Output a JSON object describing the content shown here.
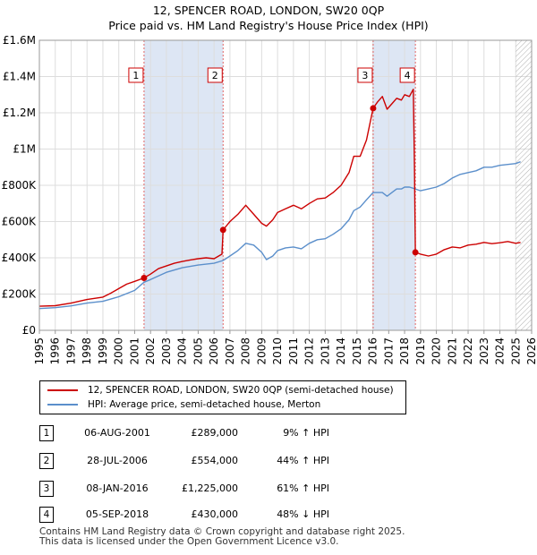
{
  "chart_data": {
    "type": "line",
    "title": "12, SPENCER ROAD, LONDON, SW20 0QP",
    "subtitle": "Price paid vs. HM Land Registry's House Price Index (HPI)",
    "xlabel": "",
    "ylabel": "",
    "xlim": [
      1995,
      2026
    ],
    "ylim": [
      0,
      1600000
    ],
    "y_ticks": [
      {
        "value": 0,
        "label": "£0"
      },
      {
        "value": 200000,
        "label": "£200K"
      },
      {
        "value": 400000,
        "label": "£400K"
      },
      {
        "value": 600000,
        "label": "£600K"
      },
      {
        "value": 800000,
        "label": "£800K"
      },
      {
        "value": 1000000,
        "label": "£1M"
      },
      {
        "value": 1200000,
        "label": "£1.2M"
      },
      {
        "value": 1400000,
        "label": "£1.4M"
      },
      {
        "value": 1600000,
        "label": "£1.6M"
      }
    ],
    "x_ticks": [
      "1995",
      "1996",
      "1997",
      "1998",
      "1999",
      "2000",
      "2001",
      "2002",
      "2003",
      "2004",
      "2005",
      "2006",
      "2007",
      "2008",
      "2009",
      "2010",
      "2011",
      "2012",
      "2013",
      "2014",
      "2015",
      "2016",
      "2017",
      "2018",
      "2019",
      "2020",
      "2021",
      "2022",
      "2023",
      "2024",
      "2025",
      "2026"
    ],
    "grid": true,
    "legend_position": "below",
    "series": [
      {
        "name": "12, SPENCER ROAD, LONDON, SW20 0QP (semi-detached house)",
        "color": "#cc0000",
        "x": [
          1995.0,
          1996.0,
          1997.0,
          1998.0,
          1999.0,
          1999.5,
          2000.0,
          2000.5,
          2001.0,
          2001.59,
          2002.0,
          2002.5,
          2003.0,
          2003.5,
          2004.0,
          2004.5,
          2005.0,
          2005.5,
          2006.0,
          2006.5,
          2006.57,
          2007.0,
          2007.5,
          2008.0,
          2008.5,
          2009.0,
          2009.3,
          2009.7,
          2010.0,
          2010.5,
          2011.0,
          2011.5,
          2012.0,
          2012.5,
          2013.0,
          2013.5,
          2014.0,
          2014.5,
          2014.8,
          2015.2,
          2015.6,
          2016.02,
          2016.3,
          2016.6,
          2016.9,
          2017.2,
          2017.5,
          2017.8,
          2018.0,
          2018.3,
          2018.55,
          2018.62,
          2018.68,
          2019.0,
          2019.5,
          2020.0,
          2020.5,
          2021.0,
          2021.5,
          2022.0,
          2022.5,
          2023.0,
          2023.5,
          2024.0,
          2024.5,
          2025.0,
          2025.3
        ],
        "values": [
          133000,
          136000,
          150000,
          170000,
          183000,
          205000,
          230000,
          255000,
          270000,
          289000,
          310000,
          340000,
          355000,
          370000,
          380000,
          388000,
          395000,
          400000,
          395000,
          420000,
          554000,
          600000,
          640000,
          690000,
          640000,
          590000,
          575000,
          610000,
          650000,
          670000,
          690000,
          670000,
          700000,
          725000,
          730000,
          760000,
          800000,
          870000,
          960000,
          960000,
          1050000,
          1225000,
          1260000,
          1290000,
          1220000,
          1250000,
          1280000,
          1270000,
          1300000,
          1290000,
          1330000,
          900000,
          430000,
          420000,
          410000,
          420000,
          445000,
          460000,
          455000,
          470000,
          475000,
          485000,
          478000,
          483000,
          490000,
          480000,
          485000
        ]
      },
      {
        "name": "HPI: Average price, semi-detached house, Merton",
        "color": "#5b8fcb",
        "x": [
          1995.0,
          1996.0,
          1997.0,
          1998.0,
          1999.0,
          2000.0,
          2001.0,
          2001.59,
          2002.0,
          2003.0,
          2004.0,
          2005.0,
          2006.0,
          2006.57,
          2007.0,
          2007.5,
          2008.0,
          2008.5,
          2009.0,
          2009.3,
          2009.7,
          2010.0,
          2010.5,
          2011.0,
          2011.5,
          2012.0,
          2012.5,
          2013.0,
          2013.5,
          2014.0,
          2014.5,
          2014.8,
          2015.2,
          2015.6,
          2016.02,
          2016.3,
          2016.6,
          2016.9,
          2017.2,
          2017.5,
          2017.8,
          2018.0,
          2018.3,
          2018.68,
          2019.0,
          2019.5,
          2020.0,
          2020.5,
          2021.0,
          2021.5,
          2022.0,
          2022.5,
          2023.0,
          2023.5,
          2024.0,
          2024.5,
          2025.0,
          2025.3
        ],
        "values": [
          120000,
          125000,
          135000,
          150000,
          160000,
          185000,
          220000,
          265000,
          280000,
          320000,
          345000,
          360000,
          370000,
          385000,
          410000,
          440000,
          480000,
          470000,
          430000,
          390000,
          410000,
          440000,
          455000,
          460000,
          450000,
          480000,
          500000,
          505000,
          530000,
          560000,
          610000,
          660000,
          680000,
          720000,
          760000,
          760000,
          760000,
          740000,
          760000,
          780000,
          780000,
          790000,
          790000,
          780000,
          770000,
          780000,
          790000,
          810000,
          840000,
          860000,
          870000,
          880000,
          900000,
          900000,
          910000,
          915000,
          920000,
          930000
        ]
      }
    ],
    "sale_markers": [
      {
        "label": "1",
        "x": 2001.59,
        "value": 289000
      },
      {
        "label": "2",
        "x": 2006.57,
        "value": 554000
      },
      {
        "label": "3",
        "x": 2016.02,
        "value": 1225000
      },
      {
        "label": "4",
        "x": 2018.68,
        "value": 430000
      }
    ],
    "shaded_ranges": [
      [
        2001.59,
        2006.57
      ],
      [
        2016.02,
        2018.68
      ]
    ],
    "forecast_from": 2025.0
  },
  "legend": {
    "red_label": "12, SPENCER ROAD, LONDON, SW20 0QP (semi-detached house)",
    "blue_label": "HPI: Average price, semi-detached house, Merton"
  },
  "sales": [
    {
      "num": "1",
      "date": "06-AUG-2001",
      "price": "£289,000",
      "hpi": "9% ↑ HPI"
    },
    {
      "num": "2",
      "date": "28-JUL-2006",
      "price": "£554,000",
      "hpi": "44% ↑ HPI"
    },
    {
      "num": "3",
      "date": "08-JAN-2016",
      "price": "£1,225,000",
      "hpi": "61% ↑ HPI"
    },
    {
      "num": "4",
      "date": "05-SEP-2018",
      "price": "£430,000",
      "hpi": "48% ↓ HPI"
    }
  ],
  "footer": {
    "line1": "Contains HM Land Registry data © Crown copyright and database right 2025.",
    "line2": "This data is licensed under the Open Government Licence v3.0."
  }
}
